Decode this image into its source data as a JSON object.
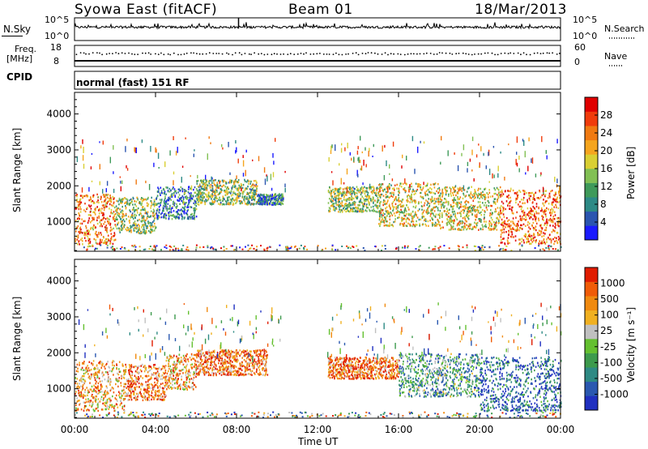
{
  "header": {
    "station": "Syowa East (fitACF)",
    "beam": "Beam 01",
    "date": "18/Mar/2013"
  },
  "top_panels": {
    "nsky_label": "N.Sky",
    "nsky_top_tick": "10^5",
    "nsky_bottom_tick": "10^0",
    "nsearch_label": "N.Search",
    "nsearch_top_tick": "10^5",
    "nsearch_bottom_tick": "10^0",
    "freq_label_1": "Freq.",
    "freq_label_2": "[MHz]",
    "freq_top_tick": "18",
    "freq_bottom_tick": "8",
    "nave_label": "Nave",
    "nave_top_tick": "60",
    "nave_bottom_tick": "0",
    "cpid_label": "CPID",
    "cpid_text": "normal (fast) 151 RF"
  },
  "chart_data": [
    {
      "type": "heatmap",
      "panel": "power",
      "x_label": "Time UT",
      "y_label": "Slant Range [km]",
      "x_ticks": [
        "00:00",
        "04:00",
        "08:00",
        "12:00",
        "16:00",
        "20:00",
        "00:00"
      ],
      "x_range_hours": [
        0,
        24
      ],
      "y_range_km": [
        180,
        4600
      ],
      "y_ticks": [
        1000,
        2000,
        3000,
        4000
      ],
      "colorbar_label": "Power [dB]",
      "colorbar_ticks": [
        4,
        8,
        12,
        16,
        20,
        24,
        28
      ],
      "colorbar_range": [
        0,
        32
      ],
      "colors": [
        "#1b1bff",
        "#2b55b0",
        "#2d8a86",
        "#3f9a5a",
        "#82c054",
        "#d9cf33",
        "#f5a51e",
        "#f07a12",
        "#f03c0c",
        "#e00000"
      ],
      "scatter_regions": [
        {
          "t": [
            0.0,
            2.0
          ],
          "r": [
            400,
            1800
          ],
          "level": 0.75
        },
        {
          "t": [
            2.0,
            4.0
          ],
          "r": [
            700,
            1700
          ],
          "level": 0.45
        },
        {
          "t": [
            4.0,
            6.0
          ],
          "r": [
            1100,
            2000
          ],
          "level": 0.25
        },
        {
          "t": [
            6.0,
            9.0
          ],
          "r": [
            1500,
            2200
          ],
          "level": 0.45
        },
        {
          "t": [
            9.0,
            10.3
          ],
          "r": [
            1500,
            1800
          ],
          "level": 0.25
        },
        {
          "t": [
            12.5,
            15.0
          ],
          "r": [
            1300,
            2000
          ],
          "level": 0.45
        },
        {
          "t": [
            15.0,
            18.0
          ],
          "r": [
            900,
            2100
          ],
          "level": 0.55
        },
        {
          "t": [
            18.0,
            21.0
          ],
          "r": [
            800,
            2000
          ],
          "level": 0.55
        },
        {
          "t": [
            21.0,
            24.0
          ],
          "r": [
            400,
            1900
          ],
          "level": 0.8
        }
      ]
    },
    {
      "type": "heatmap",
      "panel": "velocity",
      "x_label": "Time UT",
      "y_label": "Slant Range [km]",
      "x_ticks": [
        "00:00",
        "04:00",
        "08:00",
        "12:00",
        "16:00",
        "20:00",
        "00:00"
      ],
      "x_range_hours": [
        0,
        24
      ],
      "y_range_km": [
        180,
        4600
      ],
      "y_ticks": [
        1000,
        2000,
        3000,
        4000
      ],
      "colorbar_label": "Velocity [m s⁻¹]",
      "colorbar_ticks": [
        "1000",
        "500",
        "100",
        "25",
        "-25",
        "-100",
        "-500",
        "-1000"
      ],
      "colors": [
        "#2030c0",
        "#2a58b0",
        "#2e8a84",
        "#3d9a4d",
        "#64c030",
        "#c0c0c0",
        "#f0b020",
        "#f08a10",
        "#f05c08",
        "#e01c00"
      ],
      "scatter_regions": [
        {
          "t": [
            0.0,
            2.5
          ],
          "r": [
            400,
            1800
          ],
          "level": 0.7
        },
        {
          "t": [
            2.5,
            4.5
          ],
          "r": [
            700,
            1700
          ],
          "level": 0.8
        },
        {
          "t": [
            4.5,
            6.0
          ],
          "r": [
            1000,
            2000
          ],
          "level": 0.7
        },
        {
          "t": [
            6.0,
            9.5
          ],
          "r": [
            1400,
            2100
          ],
          "level": 0.8
        },
        {
          "t": [
            12.5,
            16.0
          ],
          "r": [
            1300,
            1900
          ],
          "level": 0.8
        },
        {
          "t": [
            16.0,
            20.0
          ],
          "r": [
            800,
            2000
          ],
          "level": 0.35
        },
        {
          "t": [
            20.0,
            24.0
          ],
          "r": [
            400,
            1900
          ],
          "level": 0.15
        }
      ]
    }
  ]
}
